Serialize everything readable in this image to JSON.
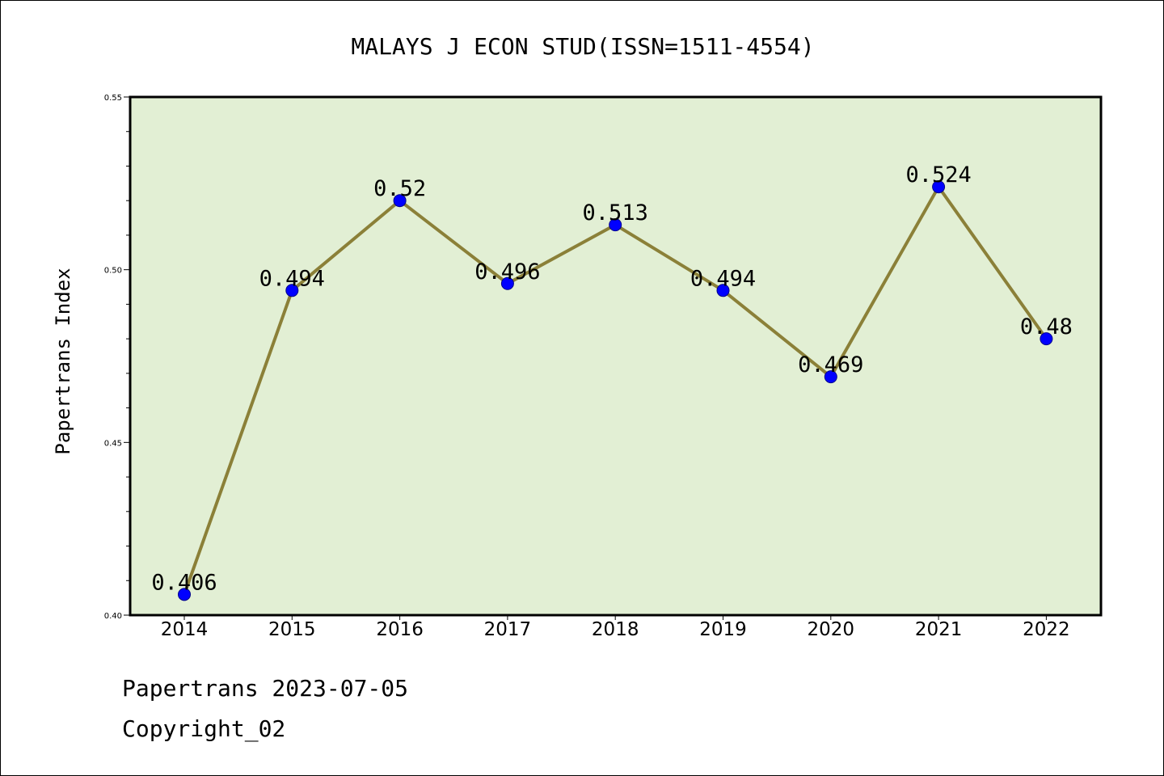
{
  "chart_data": {
    "type": "line",
    "title": "MALAYS J ECON STUD(ISSN=1511-4554)",
    "xlabel": "",
    "ylabel": "Papertrans Index",
    "x": [
      "2014",
      "2015",
      "2016",
      "2017",
      "2018",
      "2019",
      "2020",
      "2021",
      "2022"
    ],
    "values": [
      0.406,
      0.494,
      0.52,
      0.496,
      0.513,
      0.494,
      0.469,
      0.524,
      0.48
    ],
    "data_labels": [
      "0.406",
      "0.494",
      "0.52",
      "0.496",
      "0.513",
      "0.494",
      "0.469",
      "0.524",
      "0.48"
    ],
    "ylim": [
      0.4,
      0.55
    ],
    "y_ticks": [
      "0.40",
      "0.45",
      "0.50",
      "0.55"
    ],
    "grid": false,
    "legend": "none",
    "colors": {
      "plot_background": "#e2efd4",
      "line": "#8b8038",
      "marker": "#0000ff"
    }
  },
  "footer": {
    "line1": "Papertrans 2023-07-05",
    "line2": "Copyright_02"
  }
}
